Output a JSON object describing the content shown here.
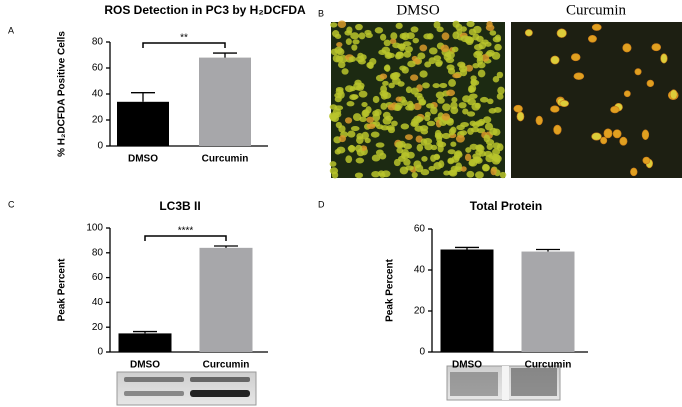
{
  "panels": [
    "A",
    "B",
    "C",
    "D"
  ],
  "images": [
    {
      "label": "DMSO"
    },
    {
      "label": "Curcumin"
    }
  ],
  "chart_data": [
    {
      "type": "bar",
      "title": "ROS Detection in PC3 by H₂DCFDA",
      "y_label": "% H₂DCFDA Positive Cells",
      "categories": [
        "DMSO",
        "Curcumin"
      ],
      "values": [
        34,
        68
      ],
      "errors": [
        7,
        3.5
      ],
      "colors": [
        "#000000",
        "#a7a7aa"
      ],
      "ylim": [
        0,
        80
      ],
      "yticks": [
        0,
        20,
        40,
        60,
        80
      ],
      "significance": "**"
    },
    {
      "type": "bar",
      "title": "LC3B II",
      "y_label": "Peak Percent",
      "categories": [
        "DMSO",
        "Curcumin"
      ],
      "values": [
        15,
        84
      ],
      "errors": [
        1.5,
        1.5
      ],
      "colors": [
        "#000000",
        "#a7a7aa"
      ],
      "ylim": [
        0,
        100
      ],
      "yticks": [
        0,
        20,
        40,
        60,
        80,
        100
      ],
      "significance": "****"
    },
    {
      "type": "bar",
      "title": "Total Protein",
      "y_label": "Peak Percent",
      "categories": [
        "DMSO",
        "Curcumin"
      ],
      "values": [
        50,
        49
      ],
      "errors": [
        1,
        1
      ],
      "colors": [
        "#000000",
        "#a7a7aa"
      ],
      "ylim": [
        0,
        60
      ],
      "yticks": [
        0,
        20,
        40,
        60
      ]
    }
  ]
}
